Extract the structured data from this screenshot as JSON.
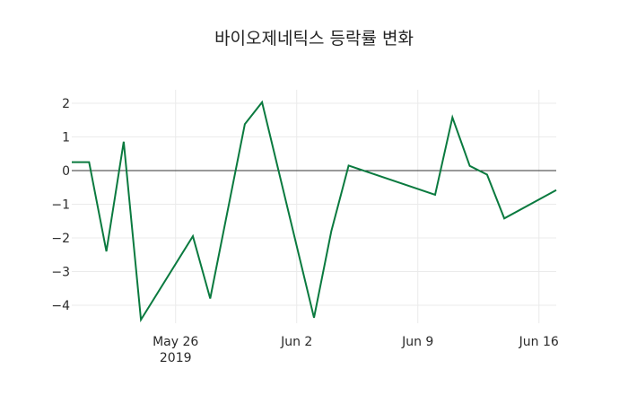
{
  "chart_data": {
    "type": "line",
    "title": "바이오제네틱스 등락률 변화",
    "xlabel": "",
    "ylabel": "",
    "x": [
      "2019-05-20",
      "2019-05-21",
      "2019-05-22",
      "2019-05-23",
      "2019-05-24",
      "2019-05-27",
      "2019-05-28",
      "2019-05-30",
      "2019-05-31",
      "2019-06-03",
      "2019-06-04",
      "2019-06-05",
      "2019-06-10",
      "2019-06-11",
      "2019-06-12",
      "2019-06-13",
      "2019-06-14",
      "2019-06-17"
    ],
    "series": [
      {
        "name": "등락률",
        "color": "#0a7a3f",
        "values": [
          0.25,
          0.25,
          -2.4,
          0.86,
          -4.43,
          -1.95,
          -3.8,
          1.38,
          2.03,
          -4.37,
          -1.8,
          0.15,
          -0.72,
          1.58,
          0.14,
          -0.12,
          -1.42,
          -0.58
        ]
      }
    ],
    "x_ticks": [
      {
        "label": "May 26",
        "sublabel": "2019",
        "date": "2019-05-26"
      },
      {
        "label": "Jun 2",
        "sublabel": "",
        "date": "2019-06-02"
      },
      {
        "label": "Jun 9",
        "sublabel": "",
        "date": "2019-06-09"
      },
      {
        "label": "Jun 16",
        "sublabel": "",
        "date": "2019-06-16"
      }
    ],
    "y_ticks": [
      2,
      1,
      0,
      -1,
      -2,
      -3,
      -4
    ],
    "y_tick_labels": [
      "2",
      "1",
      "0",
      "−1",
      "−2",
      "−3",
      "−4"
    ],
    "ylim": [
      -4.6,
      2.4
    ],
    "grid": true,
    "zero_line": true,
    "legend": "none"
  }
}
